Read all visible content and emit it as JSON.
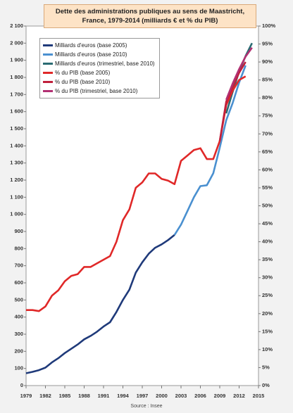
{
  "chart_data": {
    "type": "line",
    "title": "Dette des administrations publiques au sens de Maastricht, France, 1979-2014 (milliards € et % du PIB)",
    "source": "Source : Insee",
    "x": [
      1979,
      1980,
      1981,
      1982,
      1983,
      1984,
      1985,
      1986,
      1987,
      1988,
      1989,
      1990,
      1991,
      1992,
      1993,
      1994,
      1995,
      1996,
      1997,
      1998,
      1999,
      2000,
      2001,
      2002,
      2003,
      2004,
      2005,
      2006,
      2007,
      2008,
      2009,
      2010,
      2011,
      2012,
      2013,
      2014
    ],
    "xlim": [
      1979,
      2015
    ],
    "xticks": [
      1979,
      1982,
      1985,
      1988,
      1991,
      1994,
      1997,
      2000,
      2003,
      2006,
      2009,
      2012,
      2015
    ],
    "ylim": [
      0,
      2100
    ],
    "yticks": [
      0,
      100,
      200,
      300,
      400,
      500,
      600,
      700,
      800,
      900,
      {
        "value": 1000,
        "label": "1 000"
      },
      {
        "value": 1100,
        "label": "1 100"
      },
      {
        "value": 1200,
        "label": "1 200"
      },
      {
        "value": 1300,
        "label": "1 300"
      },
      {
        "value": 1400,
        "label": "1 400"
      },
      {
        "value": 1500,
        "label": "1 500"
      },
      {
        "value": 1600,
        "label": "1 600"
      },
      {
        "value": 1700,
        "label": "1 700"
      },
      {
        "value": 1800,
        "label": "1 800"
      },
      {
        "value": 1900,
        "label": "1 900"
      },
      {
        "value": 2000,
        "label": "2 000"
      },
      {
        "value": 2100,
        "label": "2 100"
      }
    ],
    "y2lim": [
      0,
      100
    ],
    "y2ticks": [
      {
        "value": 0,
        "label": "0%"
      },
      {
        "value": 5,
        "label": "5%"
      },
      {
        "value": 10,
        "label": "10%"
      },
      {
        "value": 15,
        "label": "15%"
      },
      {
        "value": 20,
        "label": "20%"
      },
      {
        "value": 25,
        "label": "25%"
      },
      {
        "value": 30,
        "label": "30%"
      },
      {
        "value": 35,
        "label": "35%"
      },
      {
        "value": 40,
        "label": "40%"
      },
      {
        "value": 45,
        "label": "45%"
      },
      {
        "value": 50,
        "label": "50%"
      },
      {
        "value": 55,
        "label": "55%"
      },
      {
        "value": 60,
        "label": "60%"
      },
      {
        "value": 65,
        "label": "65%"
      },
      {
        "value": 70,
        "label": "70%"
      },
      {
        "value": 75,
        "label": "75%"
      },
      {
        "value": 80,
        "label": "80%"
      },
      {
        "value": 85,
        "label": "85%"
      },
      {
        "value": 90,
        "label": "90%"
      },
      {
        "value": 95,
        "label": "95%"
      },
      {
        "value": 100,
        "label": "100%"
      }
    ],
    "series": [
      {
        "name": "Milliards d'euros (base 2005)",
        "color": "#1f3a7a",
        "values": [
          72,
          80,
          90,
          105,
          135,
          160,
          190,
          215,
          240,
          270,
          290,
          315,
          345,
          370,
          430,
          500,
          560,
          660,
          720,
          770,
          805,
          825,
          850,
          880,
          null,
          null,
          null,
          null,
          null,
          null,
          null,
          null,
          null,
          null,
          null,
          null
        ]
      },
      {
        "name": "Milliards d'euros (base 2010)",
        "color": "#4a90d0",
        "values": [
          null,
          null,
          null,
          null,
          null,
          null,
          null,
          null,
          null,
          null,
          null,
          null,
          null,
          null,
          null,
          null,
          null,
          null,
          null,
          null,
          null,
          null,
          null,
          880,
          940,
          1020,
          1100,
          1165,
          1170,
          1240,
          1390,
          1550,
          1650,
          1770,
          1870,
          null
        ]
      },
      {
        "name": "Milliards d'euros (trimestriel, base 2010)",
        "color": "#2a6b72",
        "values": [
          null,
          null,
          null,
          null,
          null,
          null,
          null,
          null,
          null,
          null,
          null,
          null,
          null,
          null,
          null,
          null,
          null,
          null,
          null,
          null,
          null,
          null,
          null,
          null,
          null,
          null,
          null,
          null,
          null,
          null,
          null,
          1590,
          1715,
          1835,
          1925,
          2000
        ]
      },
      {
        "name": "% du PIB (base 2005)",
        "color": "#e02828",
        "axis": "y2",
        "values": [
          21,
          21,
          20.7,
          22,
          25,
          26.5,
          29,
          30.5,
          31,
          33,
          33,
          34,
          35,
          36,
          40,
          46,
          49,
          55,
          56.5,
          59,
          59,
          57.5,
          57,
          56,
          62.5,
          64,
          65.5,
          66,
          63,
          63,
          68,
          78,
          82,
          85,
          86,
          null
        ]
      },
      {
        "name": "% du PIB (base 2010)",
        "color": "#c0203c",
        "axis": "y2",
        "values": [
          null,
          null,
          null,
          null,
          null,
          null,
          null,
          null,
          null,
          null,
          null,
          null,
          null,
          null,
          null,
          null,
          null,
          null,
          null,
          null,
          null,
          null,
          null,
          null,
          null,
          null,
          null,
          null,
          null,
          null,
          68,
          79,
          83,
          87,
          90,
          null
        ]
      },
      {
        "name": "% du PIB (trimestriel, base 2010)",
        "color": "#b23072",
        "axis": "y2",
        "values": [
          null,
          null,
          null,
          null,
          null,
          null,
          null,
          null,
          null,
          null,
          null,
          null,
          null,
          null,
          null,
          null,
          null,
          null,
          null,
          null,
          null,
          null,
          null,
          null,
          null,
          null,
          null,
          null,
          null,
          null,
          null,
          79.5,
          84,
          88,
          91.5,
          94
        ]
      }
    ]
  }
}
